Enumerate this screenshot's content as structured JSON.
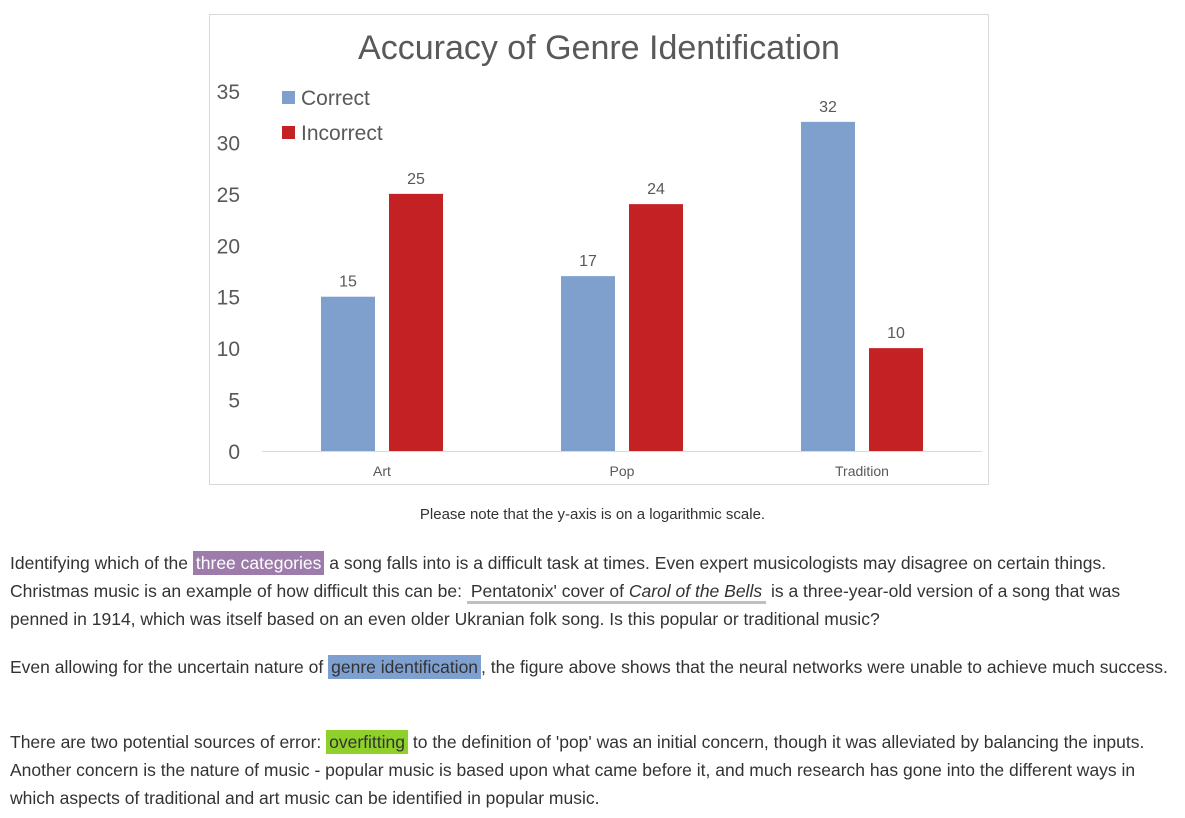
{
  "chart_data": {
    "type": "bar",
    "title": "Accuracy of Genre Identification",
    "categories": [
      "Art",
      "Pop",
      "Tradition"
    ],
    "series": [
      {
        "name": "Correct",
        "values": [
          15,
          17,
          32
        ],
        "color": "#7f9fcd"
      },
      {
        "name": "Incorrect",
        "values": [
          25,
          24,
          10
        ],
        "color": "#c42124"
      }
    ],
    "yticks": [
      "0",
      "5",
      "10",
      "15",
      "20",
      "25",
      "30",
      "35"
    ],
    "ylim": [
      0,
      35
    ],
    "grid": false,
    "legend_position": "top-left",
    "xlabel": "",
    "ylabel": ""
  },
  "caption": "Please note that the y-axis is on a logarithmic scale.",
  "paragraphs": {
    "p1": {
      "pre": "Identifying which of the ",
      "highlight": "three categories",
      "mid": " a song falls into is a difficult task at times. Even expert musicologists may disagree on certain things. Christmas music is an example of how difficult this can be: ",
      "link_pre": "Pentatonix' cover of ",
      "link_italic": "Carol of the Bells",
      "post": " is a three-year-old version of a song that was penned in 1914, which was itself based on an even older Ukranian folk song. Is this popular or traditional music?"
    },
    "p2": {
      "pre": "Even allowing for the uncertain nature of ",
      "highlight": "genre identification",
      "post": ", the figure above shows that the neural networks were unable to achieve much success."
    },
    "p3": {
      "pre": "There are two potential sources of error: ",
      "highlight": "overfitting",
      "post": " to the definition of 'pop' was an initial concern, though it was alleviated by balancing the inputs. Another concern is the nature of music - popular music is based upon what came before it, and much research has gone into the different ways in which aspects of traditional and art music can be identified in popular music."
    }
  },
  "colors": {
    "highlight_purple": "#9d7bab",
    "highlight_blue": "#7ea0d0",
    "highlight_green": "#8fd12a"
  }
}
